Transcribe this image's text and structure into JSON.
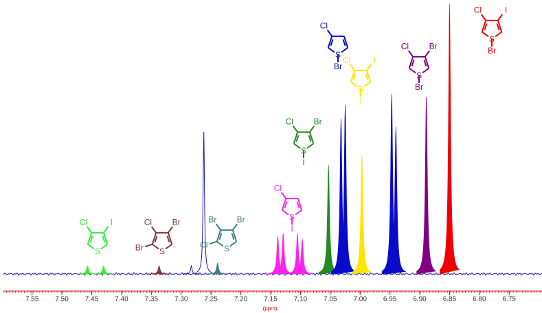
{
  "chart_data": {
    "type": "nmr",
    "xlabel": "(ppm)",
    "xlim": [
      7.598,
      6.695
    ],
    "ylim": [
      0,
      100
    ],
    "xticks": [
      7.55,
      {
        "value": 7.5,
        "label": "7.50"
      },
      7.45,
      {
        "value": 7.4,
        "label": "7.40"
      },
      7.35,
      {
        "value": 7.3,
        "label": "7.30"
      },
      7.25,
      {
        "value": 7.2,
        "label": "7.20"
      },
      7.15,
      {
        "value": 7.1,
        "label": "7.10"
      },
      7.05,
      {
        "value": 7.0,
        "label": "7.00"
      },
      6.95,
      {
        "value": 6.9,
        "label": "6.90"
      },
      6.85,
      {
        "value": 6.8,
        "label": "6.80"
      },
      6.75
    ],
    "solvent": {
      "color": "#1a1aa8",
      "x": [
        7.283,
        7.262
      ],
      "values": [
        3,
        52
      ]
    },
    "series": [
      {
        "color": "#33ee33",
        "x": [
          7.457,
          7.43
        ],
        "values": [
          3,
          3
        ],
        "structure": [
          "S",
          "Cl",
          "I"
        ]
      },
      {
        "color": "#803838",
        "x": [
          7.337
        ],
        "values": [
          3
        ],
        "structure": [
          "S",
          "Br",
          "Cl",
          "Br"
        ]
      },
      {
        "color": "#3f7f7f",
        "x": [
          7.239
        ],
        "values": [
          4
        ],
        "structure": [
          "S",
          "Cl",
          "Br",
          "Br"
        ]
      },
      {
        "color": "#ff22ee",
        "x": [
          7.138,
          7.129,
          7.105,
          7.097
        ],
        "values": [
          14,
          15,
          15,
          13
        ],
        "structure": [
          "S",
          "Cl",
          "I"
        ]
      },
      {
        "color": "#228b22",
        "x": [
          7.053
        ],
        "values": [
          40
        ],
        "structure": [
          "S",
          "Cl",
          "I",
          "Br"
        ]
      },
      {
        "color": "#0a0acc",
        "x": [
          7.032,
          7.025,
          6.947,
          6.94
        ],
        "values": [
          57,
          62,
          66,
          54
        ],
        "structure": [
          "S",
          "Cl",
          "Br"
        ]
      },
      {
        "color": "#ffe600",
        "x": [
          6.997
        ],
        "values": [
          44
        ],
        "structure": [
          "S",
          "Cl",
          "I",
          "I"
        ]
      },
      {
        "color": "#800080",
        "x": [
          6.889
        ],
        "values": [
          65
        ],
        "structure": [
          "S",
          "Cl",
          "Br",
          "Br"
        ]
      },
      {
        "color": "#ee0000",
        "x": [
          6.85
        ],
        "values": [
          99
        ],
        "structure": [
          "S",
          "Cl",
          "Br",
          "I"
        ]
      }
    ]
  }
}
